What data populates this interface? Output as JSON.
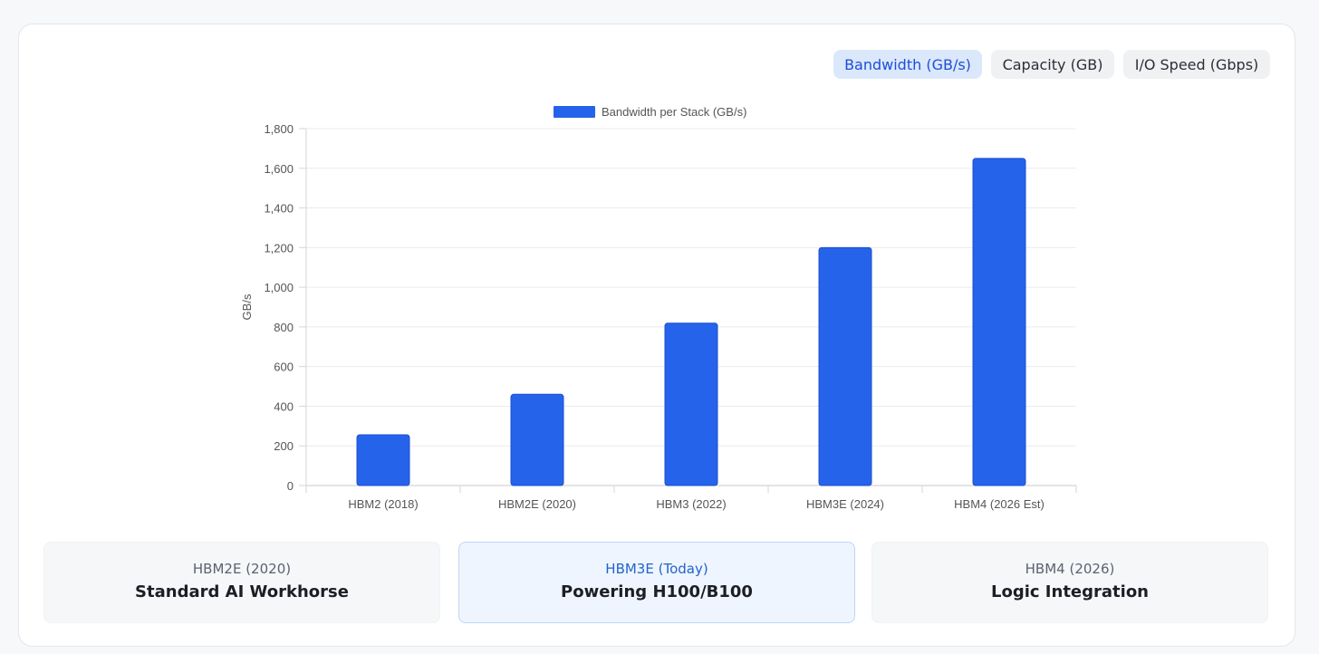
{
  "tabs": [
    {
      "label": "Bandwidth (GB/s)",
      "active": true
    },
    {
      "label": "Capacity (GB)",
      "active": false
    },
    {
      "label": "I/O Speed (Gbps)",
      "active": false
    }
  ],
  "colors": {
    "bar": "#2563eb",
    "accent": "#1d4ed8",
    "active_bg": "#dbe8fb"
  },
  "chart_data": {
    "type": "bar",
    "title": "",
    "legend": "Bandwidth per Stack (GB/s)",
    "legend_position": "top-center",
    "categories": [
      "HBM2 (2018)",
      "HBM2E (2020)",
      "HBM3 (2022)",
      "HBM3E (2024)",
      "HBM4 (2026 Est)"
    ],
    "values": [
      256,
      460,
      819,
      1200,
      1650
    ],
    "xlabel": "",
    "ylabel": "GB/s",
    "ylim": [
      0,
      1800
    ],
    "yticks": [
      "0",
      "200",
      "400",
      "600",
      "800",
      "1,000",
      "1,200",
      "1,400",
      "1,600",
      "1,800"
    ],
    "grid": true
  },
  "cards": [
    {
      "subtitle": "HBM2E (2020)",
      "title": "Standard AI Workhorse",
      "active": false
    },
    {
      "subtitle": "HBM3E (Today)",
      "title": "Powering H100/B100",
      "active": true
    },
    {
      "subtitle": "HBM4 (2026)",
      "title": "Logic Integration",
      "active": false
    }
  ]
}
